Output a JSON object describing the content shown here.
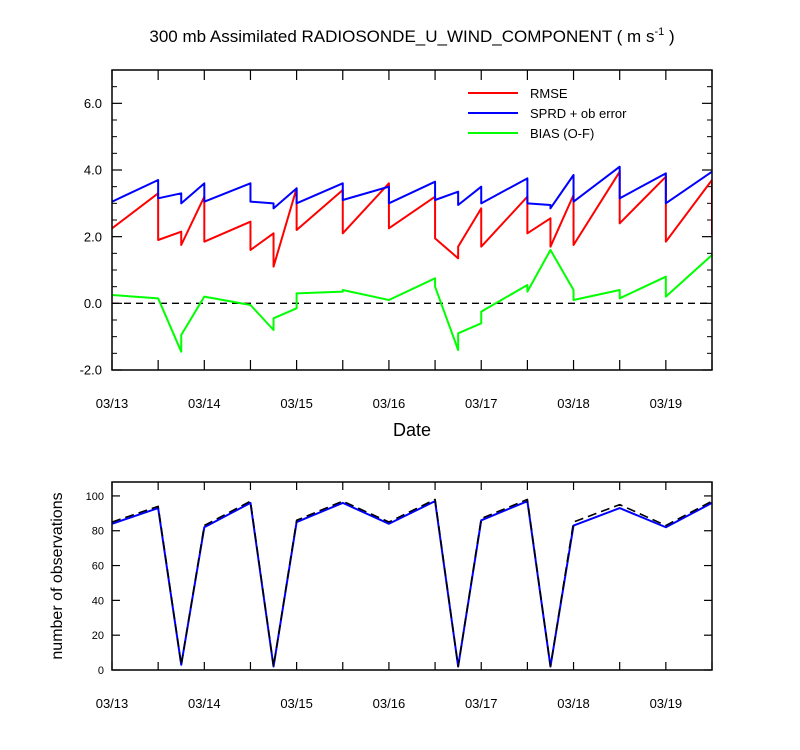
{
  "title": "300 mb Assimilated RADIOSONDE_U_WIND_COMPONENT ( m s",
  "title_unit_superscript": "-1",
  "title_close": " )",
  "colors": {
    "rmse": "#ff0000",
    "sprd": "#0000ff",
    "bias": "#00ff00",
    "axis": "#000000"
  },
  "chart_data": [
    {
      "type": "line",
      "x_axis": "date",
      "xlabel": "Date",
      "ylabel": "",
      "xlim": [
        "2025-03-13T00",
        "2025-03-19T12"
      ],
      "ylim": [
        -2.0,
        7.0
      ],
      "x_tick_labels": [
        "03/13",
        "03/14",
        "03/15",
        "03/16",
        "03/17",
        "03/18",
        "03/19"
      ],
      "y_tick_labels": [
        "-2.0",
        "0.0",
        "2.0",
        "4.0",
        "6.0"
      ],
      "y_ticks": [
        -2,
        0,
        2,
        4,
        6
      ],
      "reference_line": {
        "y": 0,
        "style": "dashed"
      },
      "legend_position": "top-right",
      "series": [
        {
          "name": "RMSE",
          "color": "#ff0000",
          "points": [
            [
              "2025-03-13T00",
              2.25
            ],
            [
              "2025-03-13T12",
              3.3
            ],
            [
              "2025-03-13T12",
              1.9
            ],
            [
              "2025-03-13T18",
              2.15
            ],
            [
              "2025-03-13T18",
              1.75
            ],
            [
              "2025-03-14T00",
              3.2
            ],
            [
              "2025-03-14T00",
              1.85
            ],
            [
              "2025-03-14T12",
              2.45
            ],
            [
              "2025-03-14T12",
              1.6
            ],
            [
              "2025-03-14T18",
              2.1
            ],
            [
              "2025-03-14T18",
              1.1
            ],
            [
              "2025-03-15T00",
              3.45
            ],
            [
              "2025-03-15T00",
              2.2
            ],
            [
              "2025-03-15T12",
              3.4
            ],
            [
              "2025-03-15T12",
              2.1
            ],
            [
              "2025-03-16T00",
              3.6
            ],
            [
              "2025-03-16T00",
              2.25
            ],
            [
              "2025-03-16T12",
              3.2
            ],
            [
              "2025-03-16T12",
              1.95
            ],
            [
              "2025-03-16T18",
              1.35
            ],
            [
              "2025-03-16T18",
              1.7
            ],
            [
              "2025-03-17T00",
              2.85
            ],
            [
              "2025-03-17T00",
              1.7
            ],
            [
              "2025-03-17T12",
              3.2
            ],
            [
              "2025-03-17T12",
              2.1
            ],
            [
              "2025-03-17T18",
              2.55
            ],
            [
              "2025-03-17T18",
              1.7
            ],
            [
              "2025-03-18T00",
              3.25
            ],
            [
              "2025-03-18T00",
              1.75
            ],
            [
              "2025-03-18T12",
              3.95
            ],
            [
              "2025-03-18T12",
              2.4
            ],
            [
              "2025-03-19T00",
              3.8
            ],
            [
              "2025-03-19T00",
              1.85
            ],
            [
              "2025-03-19T12",
              3.7
            ],
            [
              "2025-03-19T12",
              2.05
            ]
          ]
        },
        {
          "name": "SPRD + ob error",
          "color": "#0000ff",
          "points": [
            [
              "2025-03-13T00",
              3.05
            ],
            [
              "2025-03-13T12",
              3.7
            ],
            [
              "2025-03-13T12",
              3.15
            ],
            [
              "2025-03-13T18",
              3.3
            ],
            [
              "2025-03-13T18",
              3.0
            ],
            [
              "2025-03-14T00",
              3.6
            ],
            [
              "2025-03-14T00",
              3.05
            ],
            [
              "2025-03-14T12",
              3.6
            ],
            [
              "2025-03-14T12",
              3.05
            ],
            [
              "2025-03-14T18",
              3.0
            ],
            [
              "2025-03-14T18",
              2.85
            ],
            [
              "2025-03-15T00",
              3.45
            ],
            [
              "2025-03-15T00",
              3.0
            ],
            [
              "2025-03-15T12",
              3.6
            ],
            [
              "2025-03-15T12",
              3.1
            ],
            [
              "2025-03-16T00",
              3.5
            ],
            [
              "2025-03-16T00",
              3.0
            ],
            [
              "2025-03-16T12",
              3.65
            ],
            [
              "2025-03-16T12",
              3.1
            ],
            [
              "2025-03-16T18",
              3.35
            ],
            [
              "2025-03-16T18",
              2.95
            ],
            [
              "2025-03-17T00",
              3.5
            ],
            [
              "2025-03-17T00",
              3.0
            ],
            [
              "2025-03-17T12",
              3.75
            ],
            [
              "2025-03-17T12",
              3.0
            ],
            [
              "2025-03-17T18",
              2.95
            ],
            [
              "2025-03-17T18",
              2.85
            ],
            [
              "2025-03-18T00",
              3.85
            ],
            [
              "2025-03-18T00",
              3.05
            ],
            [
              "2025-03-18T12",
              4.1
            ],
            [
              "2025-03-18T12",
              3.15
            ],
            [
              "2025-03-19T00",
              3.9
            ],
            [
              "2025-03-19T00",
              3.0
            ],
            [
              "2025-03-19T12",
              3.95
            ]
          ]
        },
        {
          "name": "BIAS (O-F)",
          "color": "#00ff00",
          "points": [
            [
              "2025-03-13T00",
              0.25
            ],
            [
              "2025-03-13T12",
              0.15
            ],
            [
              "2025-03-13T18",
              -1.45
            ],
            [
              "2025-03-13T18",
              -0.95
            ],
            [
              "2025-03-14T00",
              0.2
            ],
            [
              "2025-03-14T12",
              -0.05
            ],
            [
              "2025-03-14T18",
              -0.8
            ],
            [
              "2025-03-14T18",
              -0.45
            ],
            [
              "2025-03-15T00",
              -0.15
            ],
            [
              "2025-03-15T00",
              0.3
            ],
            [
              "2025-03-15T12",
              0.35
            ],
            [
              "2025-03-15T12",
              0.4
            ],
            [
              "2025-03-16T00",
              0.1
            ],
            [
              "2025-03-16T12",
              0.75
            ],
            [
              "2025-03-16T12",
              0.5
            ],
            [
              "2025-03-16T18",
              -1.4
            ],
            [
              "2025-03-16T18",
              -0.9
            ],
            [
              "2025-03-17T00",
              -0.6
            ],
            [
              "2025-03-17T00",
              -0.25
            ],
            [
              "2025-03-17T12",
              0.55
            ],
            [
              "2025-03-17T12",
              0.35
            ],
            [
              "2025-03-17T18",
              1.6
            ],
            [
              "2025-03-18T00",
              0.4
            ],
            [
              "2025-03-18T00",
              0.1
            ],
            [
              "2025-03-18T12",
              0.4
            ],
            [
              "2025-03-18T12",
              0.15
            ],
            [
              "2025-03-19T00",
              0.8
            ],
            [
              "2025-03-19T00",
              0.2
            ],
            [
              "2025-03-19T12",
              1.45
            ]
          ]
        }
      ]
    },
    {
      "type": "line",
      "x_axis": "date",
      "xlabel": "",
      "ylabel": "number of observations",
      "xlim": [
        "2025-03-13T00",
        "2025-03-19T12"
      ],
      "ylim": [
        0,
        108
      ],
      "x_tick_labels": [
        "03/13",
        "03/14",
        "03/15",
        "03/16",
        "03/17",
        "03/18",
        "03/19"
      ],
      "y_tick_labels": [
        "0",
        "20",
        "40",
        "60",
        "80",
        "100"
      ],
      "y_ticks": [
        0,
        20,
        40,
        60,
        80,
        100
      ],
      "series": [
        {
          "style": "solid",
          "color": "#0000ff",
          "points": [
            [
              "2025-03-13T00",
              84
            ],
            [
              "2025-03-13T12",
              93
            ],
            [
              "2025-03-13T18",
              3
            ],
            [
              "2025-03-14T00",
              82
            ],
            [
              "2025-03-14T12",
              96
            ],
            [
              "2025-03-14T18",
              2
            ],
            [
              "2025-03-15T00",
              85
            ],
            [
              "2025-03-15T12",
              96
            ],
            [
              "2025-03-16T00",
              84
            ],
            [
              "2025-03-16T12",
              97
            ],
            [
              "2025-03-16T18",
              2
            ],
            [
              "2025-03-17T00",
              86
            ],
            [
              "2025-03-17T12",
              97
            ],
            [
              "2025-03-17T18",
              2
            ],
            [
              "2025-03-18T00",
              83
            ],
            [
              "2025-03-18T12",
              93
            ],
            [
              "2025-03-19T00",
              82
            ],
            [
              "2025-03-19T12",
              96
            ]
          ]
        },
        {
          "style": "dashed",
          "color": "#000000",
          "points": [
            [
              "2025-03-13T00",
              85
            ],
            [
              "2025-03-13T12",
              94
            ],
            [
              "2025-03-13T18",
              3
            ],
            [
              "2025-03-14T00",
              83
            ],
            [
              "2025-03-14T12",
              97
            ],
            [
              "2025-03-14T18",
              2
            ],
            [
              "2025-03-15T00",
              86
            ],
            [
              "2025-03-15T12",
              97
            ],
            [
              "2025-03-16T00",
              85
            ],
            [
              "2025-03-16T12",
              98
            ],
            [
              "2025-03-16T18",
              2
            ],
            [
              "2025-03-17T00",
              87
            ],
            [
              "2025-03-17T12",
              98
            ],
            [
              "2025-03-17T18",
              2
            ],
            [
              "2025-03-18T00",
              85
            ],
            [
              "2025-03-18T12",
              95
            ],
            [
              "2025-03-19T00",
              83
            ],
            [
              "2025-03-19T12",
              97
            ]
          ]
        }
      ]
    }
  ]
}
